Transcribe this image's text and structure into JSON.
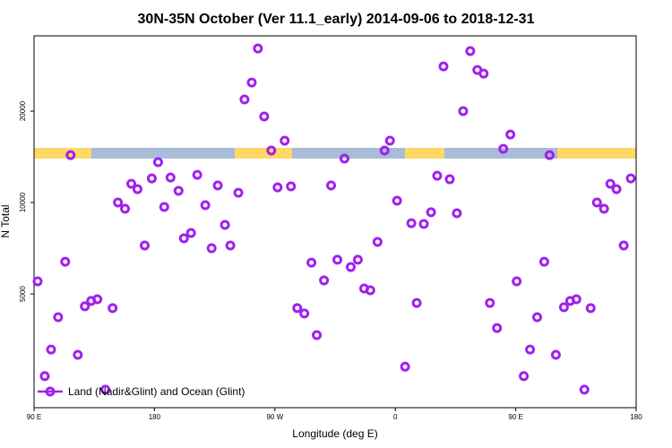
{
  "chart_data": {
    "type": "scatter",
    "title": "30N-35N October (Ver 11.1_early)   2014-09-06 to 2018-12-31",
    "x_label": "Longitude (deg E)",
    "y_label": "N Total",
    "xlim": [
      90,
      540
    ],
    "xticks": [
      {
        "value": 90,
        "label": "90 E"
      },
      {
        "value": 180,
        "label": "180"
      },
      {
        "value": 270,
        "label": "90 W"
      },
      {
        "value": 360,
        "label": "0"
      },
      {
        "value": 450,
        "label": "90 E"
      },
      {
        "value": 540,
        "label": "180"
      }
    ],
    "ylim": [
      2110,
      35400
    ],
    "yticks": [
      5000,
      10000,
      20000
    ],
    "log_y": true,
    "legend": "lower left",
    "series": [
      {
        "name": "Land (Nadir&Glint) and Ocean (Glint)",
        "color": "#a020f0",
        "x": [
          92.7,
          98,
          102.7,
          108,
          113.3,
          117.3,
          122.7,
          128,
          132.7,
          137.3,
          143.3,
          148.7,
          152.7,
          158,
          162.7,
          167.3,
          172.7,
          178,
          182.7,
          187.3,
          192,
          198,
          202,
          207.3,
          212,
          218,
          222.7,
          227.3,
          232.7,
          236.7,
          242.7,
          247.3,
          252.7,
          257.3,
          262,
          267.3,
          272,
          277.3,
          282,
          286.7,
          292,
          297.3,
          301.3,
          306.7,
          312,
          316.7,
          322,
          326.7,
          332,
          336.7,
          341.3,
          346.7,
          352,
          356,
          361.3,
          367.3,
          372,
          376,
          381.3,
          386.7,
          391.3,
          396,
          400.7,
          406,
          410.7,
          416,
          421.3,
          426,
          430.7,
          436,
          440.7,
          446,
          450.7,
          456,
          460.7,
          466,
          471.3,
          475.3,
          480,
          486,
          490.7,
          495.3,
          501.3,
          506,
          510.7,
          516,
          520.7,
          525.3,
          530.7,
          536
        ],
        "values": [
          5500,
          2680,
          3280,
          4190,
          6380,
          14330,
          3150,
          4550,
          4740,
          4800,
          2420,
          4490,
          10000,
          9540,
          11530,
          11070,
          7220,
          12010,
          13580,
          9670,
          12090,
          10930,
          7620,
          7940,
          12340,
          9800,
          7070,
          11380,
          8440,
          7220,
          10770,
          21850,
          24850,
          32150,
          19200,
          14830,
          11220,
          15990,
          11300,
          4490,
          4310,
          6340,
          3660,
          5540,
          11380,
          6480,
          13950,
          6130,
          6480,
          5210,
          5140,
          7420,
          14830,
          15990,
          10140,
          2880,
          8550,
          4670,
          8500,
          9290,
          12250,
          28070,
          11930,
          9220,
          20000,
          31540,
          27330,
          26590,
          4670,
          3860,
          15030,
          16750,
          5500,
          2680,
          3280,
          4190,
          6380,
          14330,
          3150,
          4520,
          4740,
          4800,
          2420,
          4490,
          10000,
          9540,
          11530,
          11070,
          7220,
          12010
        ]
      }
    ]
  }
}
